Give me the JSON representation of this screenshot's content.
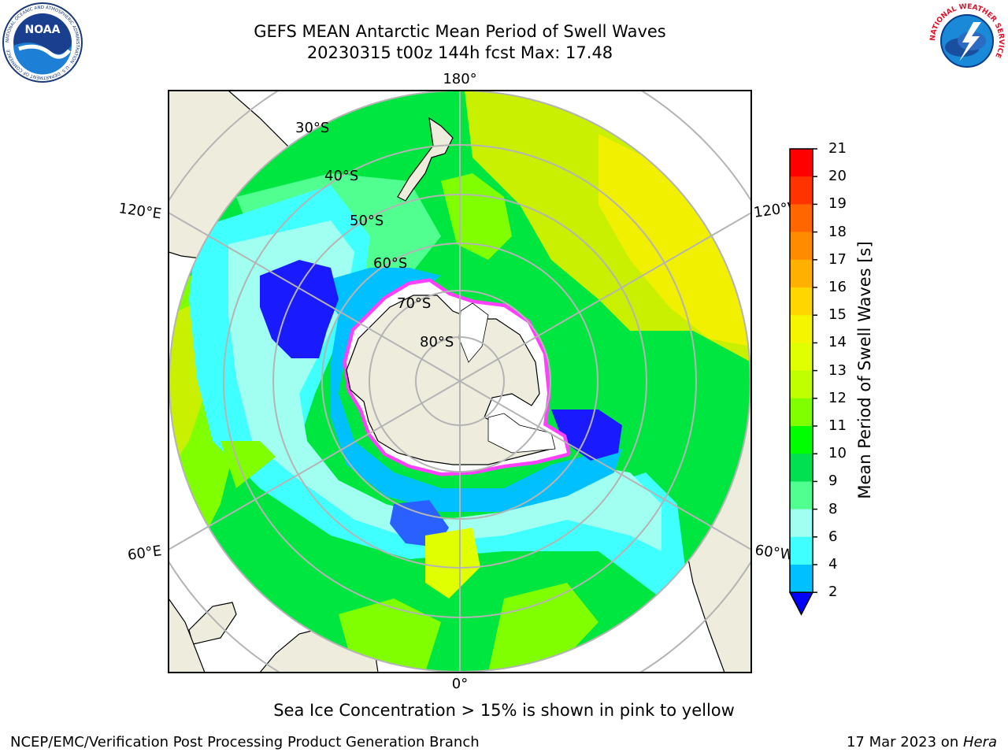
{
  "header": {
    "title": "GEFS MEAN Antarctic Mean Period of Swell Waves",
    "subtitle": "20230315 t00z 144h fcst   Max: 17.48"
  },
  "logos": {
    "left": {
      "name": "NOAA",
      "text": "NOAA",
      "ring_text": "NATIONAL OCEANIC AND ATMOSPHERIC ADMINISTRATION · U.S. DEPARTMENT OF COMMERCE"
    },
    "right": {
      "name": "National Weather Service",
      "ring_text": "NATIONAL WEATHER SERVICE"
    }
  },
  "map": {
    "projection": "south polar stereographic",
    "longitude_labels": {
      "top": "180°",
      "bottom": "0°",
      "upper_left": "120°E",
      "upper_right": "120°W",
      "lower_left": "60°E",
      "lower_right": "60°W"
    },
    "latitude_labels": [
      "30°S",
      "40°S",
      "50°S",
      "60°S",
      "70°S",
      "80°S"
    ],
    "colors": {
      "land": "#eeecdc",
      "grid": "#b4b4b4",
      "sea_ice": "#ff40ff"
    }
  },
  "colorbar": {
    "title": "Mean Period of Swell Waves [s]",
    "ticks": [
      "21",
      "20",
      "19",
      "18",
      "17",
      "16",
      "15",
      "14",
      "13",
      "12",
      "11",
      "10",
      "9",
      "8",
      "6",
      "4",
      "2"
    ],
    "colors": [
      "#ff0000",
      "#ff3300",
      "#ff6600",
      "#ff8c00",
      "#ffb000",
      "#ffd700",
      "#f5f500",
      "#e0ff00",
      "#c0ff00",
      "#80ff00",
      "#00ff00",
      "#00e050",
      "#50ff90",
      "#a0fff0",
      "#40ffff",
      "#00c0ff",
      "#0000ff"
    ]
  },
  "caption": "Sea Ice Concentration > 15% is shown in pink to yellow",
  "footer": {
    "left": "NCEP/EMC/Verification Post Processing Product Generation Branch",
    "right_date": "17 Mar 2023 on ",
    "right_host": "Hera"
  }
}
